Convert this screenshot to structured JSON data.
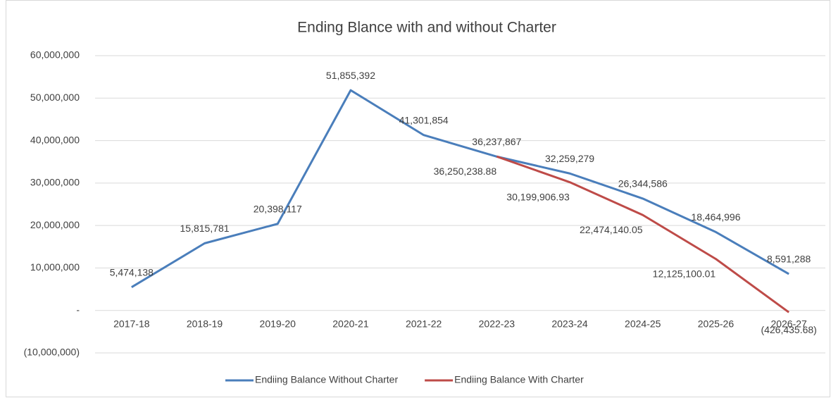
{
  "chart_data": {
    "type": "line",
    "title": "Ending Blance with and without Charter",
    "categories": [
      "2017-18",
      "2018-19",
      "2019-20",
      "2020-21",
      "2021-22",
      "2022-23",
      "2023-24",
      "2024-25",
      "2025-26",
      "2026-27"
    ],
    "series": [
      {
        "name": "Endiing Balance Without Charter",
        "color": "#4a7ebb",
        "values": [
          5474138,
          15815781,
          20398117,
          51855392,
          41301854,
          36237867,
          32259279,
          26344586,
          18464996,
          8591288
        ],
        "value_labels": [
          "5,474,138",
          "15,815,781",
          "20,398,117",
          "51,855,392",
          "41,301,854",
          "36,237,867",
          "32,259,279",
          "26,344,586",
          "18,464,996",
          "8,591,288"
        ]
      },
      {
        "name": "Endiing Balance With Charter",
        "color": "#be4b48",
        "values": [
          null,
          null,
          null,
          null,
          null,
          36250238.88,
          30199906.93,
          22474140.05,
          12125100.01,
          -426435.68
        ],
        "value_labels": [
          null,
          null,
          null,
          null,
          null,
          "36,250,238.88",
          "30,199,906.93",
          "22,474,140.05",
          "12,125,100.01",
          "(426,435.68)"
        ]
      }
    ],
    "ylim": [
      -10000000,
      60000000
    ],
    "yticks": [
      {
        "value": -10000000,
        "label": "(10,000,000)"
      },
      {
        "value": 0,
        "label": "-"
      },
      {
        "value": 10000000,
        "label": "10,000,000"
      },
      {
        "value": 20000000,
        "label": "20,000,000"
      },
      {
        "value": 30000000,
        "label": "30,000,000"
      },
      {
        "value": 40000000,
        "label": "40,000,000"
      },
      {
        "value": 50000000,
        "label": "50,000,000"
      },
      {
        "value": 60000000,
        "label": "60,000,000"
      }
    ],
    "grid": true,
    "legend": "bottom"
  }
}
